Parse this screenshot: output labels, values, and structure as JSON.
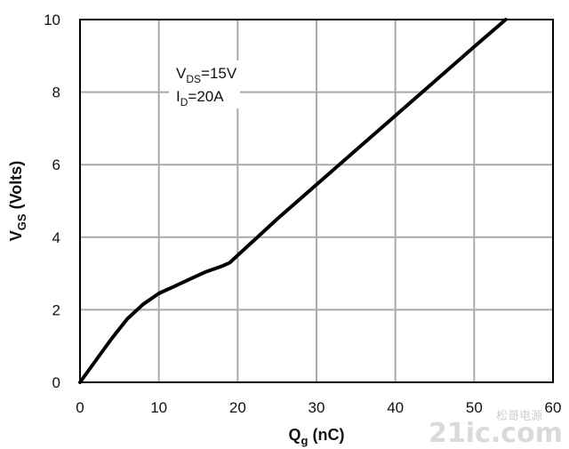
{
  "chart_data": {
    "type": "line",
    "xlabel": {
      "main": "Q",
      "sub": "g",
      "rest": " (nC)"
    },
    "ylabel": {
      "main": "V",
      "sub": "GS",
      "rest": " (Volts)"
    },
    "xlim": [
      0,
      60
    ],
    "ylim": [
      0,
      10
    ],
    "xticks": [
      "0",
      "10",
      "20",
      "30",
      "40",
      "50",
      "60"
    ],
    "yticks": [
      "0",
      "2",
      "4",
      "6",
      "8",
      "10"
    ],
    "grid": true,
    "annotations": [
      {
        "main": "V",
        "sub": "DS",
        "rest": "=15V"
      },
      {
        "main": "I",
        "sub": "D",
        "rest": "=20A"
      }
    ],
    "series": [
      {
        "x": [
          0,
          2,
          4,
          6,
          8,
          10,
          12,
          14,
          16,
          18,
          19,
          20,
          22,
          25,
          30,
          35,
          40,
          45,
          50,
          54
        ],
        "y": [
          0,
          0.6,
          1.2,
          1.75,
          2.15,
          2.45,
          2.65,
          2.85,
          3.05,
          3.2,
          3.3,
          3.5,
          3.9,
          4.5,
          5.45,
          6.4,
          7.35,
          8.3,
          9.25,
          10
        ]
      }
    ]
  },
  "watermark": {
    "text": "松哥电源",
    "site": "21ic.com"
  }
}
